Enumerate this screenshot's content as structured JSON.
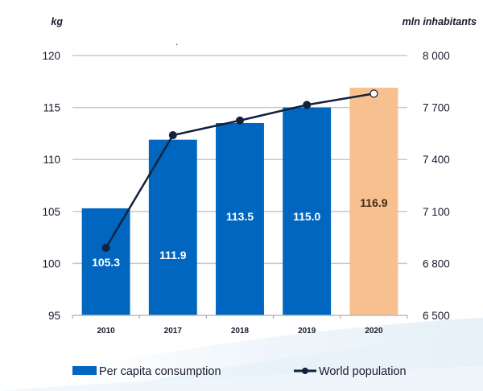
{
  "chart_data": {
    "type": "bar",
    "title": "",
    "categories": [
      "2010",
      "2017",
      "2018",
      "2019",
      "2020"
    ],
    "xlabel": "",
    "ylabel": "kg",
    "y2label": "mln inhabitants",
    "ylim": [
      95,
      120
    ],
    "y2lim": [
      6500,
      8000
    ],
    "yticks": [
      "95",
      "100",
      "105",
      "110",
      "115",
      "120"
    ],
    "y2ticks": [
      "6 500",
      "6 800",
      "7 100",
      "7 400",
      "7 700",
      "8 000"
    ],
    "grid": true,
    "legend_position": "bottom",
    "series": [
      {
        "name": "Per capita consumption",
        "type": "bar",
        "axis": "left",
        "values": [
          105.3,
          111.9,
          113.5,
          115.0,
          116.9
        ],
        "labels": [
          "105.3",
          "111.9",
          "113.5",
          "115.0",
          "116.9"
        ],
        "color": "#0066bf",
        "highlight_color": "#f8c08e",
        "highlight_index": 4
      },
      {
        "name": "World population",
        "type": "line",
        "axis": "right",
        "values": [
          6890,
          7540,
          7625,
          7715,
          7780
        ],
        "color": "#13213d",
        "open_marker_index": 4
      }
    ]
  },
  "stray_mark": "."
}
